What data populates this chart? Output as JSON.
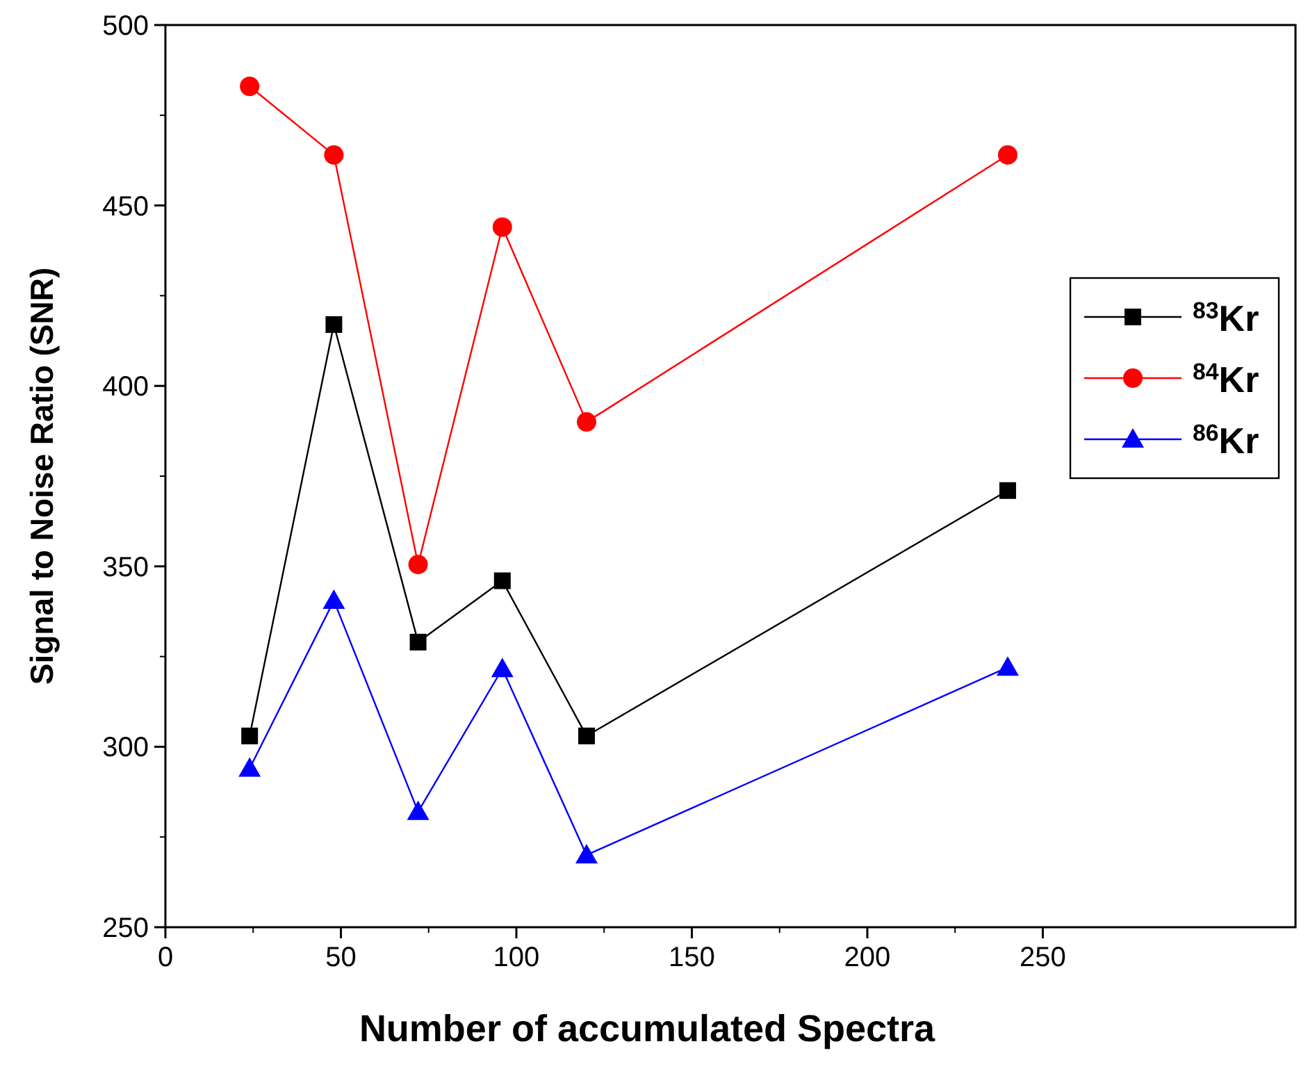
{
  "chart_data": {
    "type": "line",
    "xlabel": "Number of accumulated Spectra",
    "ylabel": "Signal to Noise Ratio (SNR)",
    "x": [
      24,
      48,
      72,
      96,
      120,
      240
    ],
    "xlim": [
      0,
      322
    ],
    "xticks": [
      0,
      50,
      100,
      150,
      200,
      250
    ],
    "ylim": [
      250,
      500
    ],
    "yticks": [
      250,
      300,
      350,
      400,
      450,
      500
    ],
    "grid": false,
    "legend": "right",
    "line_style": "solid",
    "series": [
      {
        "name": "$^{83}$Kr",
        "color": "#000000",
        "marker": "square",
        "values": [
          303,
          417,
          329,
          346,
          303,
          371
        ]
      },
      {
        "name": "$^{84}$Kr",
        "color": "#ff0000",
        "marker": "circle",
        "values": [
          483,
          464,
          350.5,
          444,
          390,
          464
        ]
      },
      {
        "name": "$^{86}$Kr",
        "color": "#0000ff",
        "marker": "triangle",
        "values": [
          294,
          340.5,
          282,
          321.6,
          270,
          322
        ]
      }
    ]
  }
}
